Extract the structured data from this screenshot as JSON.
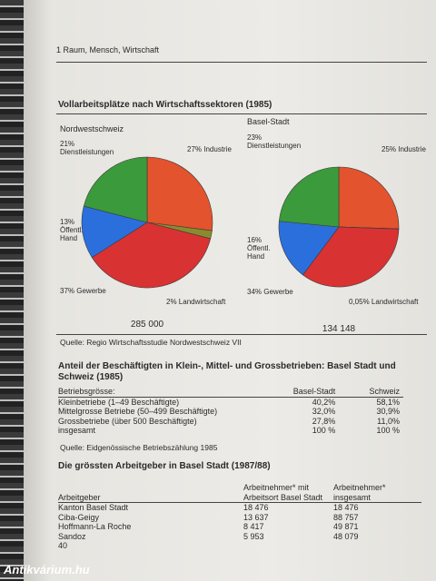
{
  "header": "1 Raum, Mensch, Wirtschaft",
  "section_title": "Vollarbeitsplätze nach Wirtschaftssektoren (1985)",
  "chart_data": [
    {
      "type": "pie",
      "title": "Nordwestschweiz",
      "categories": [
        "Industrie",
        "Landwirtschaft",
        "Gewerbe",
        "Öffentl. Hand",
        "Dienstleistungen"
      ],
      "values": [
        27,
        2,
        37,
        13,
        21
      ],
      "value_labels": [
        "27%",
        "2%",
        "37%",
        "13%",
        "21%"
      ],
      "colors": [
        "#e2532e",
        "#8c8a2e",
        "#d93233",
        "#2b6fdc",
        "#3b9a3b"
      ],
      "total": "285 000"
    },
    {
      "type": "pie",
      "title": "Basel-Stadt",
      "categories": [
        "Industrie",
        "Landwirtschaft",
        "Gewerbe",
        "Öffentl. Hand",
        "Dienstleistungen"
      ],
      "values": [
        25,
        0.05,
        34,
        16,
        23
      ],
      "value_labels": [
        "25%",
        "0,05%",
        "34%",
        "16%",
        "23%"
      ],
      "colors": [
        "#e2532e",
        "#8c8a2e",
        "#d93233",
        "#2b6fdc",
        "#3b9a3b"
      ],
      "total": "134 148"
    }
  ],
  "chart_source": "Quelle: Regio Wirtschaftsstudie Nordwestschweiz VII",
  "table1": {
    "title": "Anteil der Beschäftigten in Klein-, Mittel- und Grossbetrieben: Basel Stadt und Schweiz (1985)",
    "header": [
      "Betriebsgrösse:",
      "Basel-Stadt",
      "Schweiz"
    ],
    "rows": [
      [
        "Kleinbetriebe (1–49 Beschäftigte)",
        "40,2%",
        "58,1%"
      ],
      [
        "Mittelgrosse Betriebe (50–499 Beschäftigte)",
        "32,0%",
        "30,9%"
      ],
      [
        "Grossbetriebe (über 500 Beschäftigte)",
        "27,8%",
        "11,0%"
      ],
      [
        "insgesamt",
        "100 %",
        "100 %"
      ]
    ],
    "source": "Quelle: Eidgenössische Betriebszählung 1985"
  },
  "table2": {
    "title": "Die grössten Arbeitgeber in Basel Stadt (1987/88)",
    "header": [
      "Arbeitgeber",
      "Arbeitnehmer* mit Arbeitsort Basel Stadt",
      "Arbeitnehmer* insgesamt"
    ],
    "rows": [
      [
        "Kanton Basel Stadt",
        "18 476",
        "18 476"
      ],
      [
        "Ciba-Geigy",
        "13 637",
        "88 757"
      ],
      [
        "Hoffmann-La Roche",
        "8 417",
        "49 871"
      ],
      [
        "Sandoz",
        "5 953",
        "48 079"
      ],
      [
        "40"
      ]
    ]
  },
  "watermark": "Antikvárium.hu"
}
